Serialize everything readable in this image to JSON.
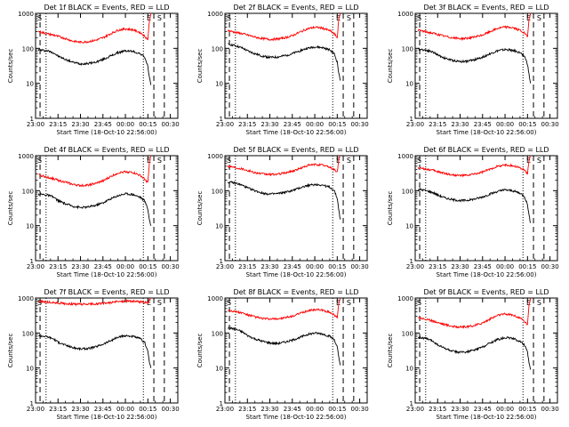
{
  "colors": {
    "background": "#ffffff",
    "events": "#000000",
    "lld": "#ff0000",
    "axis": "#000000"
  },
  "xlabel": "Start Time (18-Oct-10 22:56:00)",
  "ylabel": "Counts/sec",
  "x_tick_labels": [
    "23:00",
    "23:15",
    "23:30",
    "23:45",
    "00:00",
    "00:15",
    "00:30"
  ],
  "y_tick_labels": [
    "1",
    "10",
    "100",
    "1000"
  ],
  "marker_labels": {
    "start": "S",
    "end_e": "E",
    "end_s": "S"
  },
  "chart_data": [
    {
      "type": "line",
      "title": "Det 1f BLACK = Events, RED = LLD",
      "x_minutes_since_2300": [
        2,
        5,
        8,
        12,
        15,
        20,
        25,
        30,
        35,
        40,
        45,
        50,
        55,
        60,
        65,
        70,
        73,
        75,
        76,
        77
      ],
      "series": [
        {
          "name": "Events",
          "values": [
            90,
            88,
            85,
            75,
            60,
            48,
            40,
            36,
            37,
            40,
            48,
            60,
            75,
            85,
            82,
            70,
            55,
            30,
            15,
            9
          ]
        },
        {
          "name": "LLD",
          "values": [
            300,
            280,
            260,
            240,
            220,
            190,
            160,
            150,
            155,
            170,
            200,
            260,
            330,
            360,
            340,
            280,
            220,
            180,
            600,
            1000
          ]
        }
      ],
      "yscale": "log",
      "ylim": [
        1,
        1000
      ],
      "xlim": [
        0,
        95
      ]
    },
    {
      "type": "line",
      "title": "Det 2f BLACK = Events, RED = LLD",
      "x_minutes_since_2300": [
        2,
        5,
        8,
        12,
        15,
        20,
        25,
        30,
        35,
        40,
        45,
        50,
        55,
        60,
        65,
        70,
        73,
        75,
        76,
        77
      ],
      "series": [
        {
          "name": "Events",
          "values": [
            130,
            125,
            115,
            100,
            85,
            70,
            60,
            55,
            56,
            62,
            70,
            85,
            100,
            110,
            105,
            90,
            70,
            40,
            20,
            12
          ]
        },
        {
          "name": "LLD",
          "values": [
            320,
            300,
            280,
            260,
            240,
            210,
            190,
            180,
            185,
            200,
            230,
            290,
            360,
            400,
            380,
            320,
            260,
            200,
            650,
            1000
          ]
        }
      ],
      "yscale": "log",
      "ylim": [
        1,
        1000
      ],
      "xlim": [
        0,
        95
      ]
    },
    {
      "type": "line",
      "title": "Det 3f BLACK = Events, RED = LLD",
      "x_minutes_since_2300": [
        2,
        5,
        8,
        12,
        15,
        20,
        25,
        30,
        35,
        40,
        45,
        50,
        55,
        60,
        65,
        70,
        73,
        75,
        76,
        77
      ],
      "series": [
        {
          "name": "Events",
          "values": [
            95,
            92,
            88,
            78,
            65,
            52,
            45,
            42,
            43,
            48,
            56,
            70,
            85,
            92,
            88,
            75,
            60,
            35,
            18,
            10
          ]
        },
        {
          "name": "LLD",
          "values": [
            330,
            310,
            290,
            270,
            250,
            220,
            200,
            190,
            195,
            210,
            240,
            300,
            370,
            410,
            390,
            330,
            270,
            210,
            700,
            1000
          ]
        }
      ],
      "yscale": "log",
      "ylim": [
        1,
        1000
      ],
      "xlim": [
        0,
        95
      ]
    },
    {
      "type": "line",
      "title": "Det 4f BLACK = Events, RED = LLD",
      "x_minutes_since_2300": [
        2,
        5,
        8,
        12,
        15,
        20,
        25,
        30,
        35,
        40,
        45,
        50,
        55,
        60,
        65,
        70,
        73,
        75,
        76,
        77
      ],
      "series": [
        {
          "name": "Events",
          "values": [
            80,
            78,
            75,
            65,
            52,
            42,
            36,
            33,
            34,
            38,
            45,
            58,
            72,
            82,
            78,
            65,
            50,
            30,
            15,
            10
          ]
        },
        {
          "name": "LLD",
          "values": [
            280,
            260,
            240,
            220,
            200,
            175,
            150,
            140,
            145,
            160,
            190,
            250,
            320,
            350,
            330,
            270,
            210,
            170,
            600,
            1000
          ]
        }
      ],
      "yscale": "log",
      "ylim": [
        1,
        1000
      ],
      "xlim": [
        0,
        95
      ]
    },
    {
      "type": "line",
      "title": "Det 5f BLACK = Events, RED = LLD",
      "x_minutes_since_2300": [
        2,
        5,
        8,
        12,
        15,
        20,
        25,
        30,
        35,
        40,
        45,
        50,
        55,
        60,
        65,
        70,
        73,
        75,
        76,
        77
      ],
      "series": [
        {
          "name": "Events",
          "values": [
            175,
            170,
            160,
            140,
            120,
            100,
            85,
            80,
            82,
            90,
            100,
            120,
            140,
            150,
            145,
            125,
            100,
            60,
            30,
            15
          ]
        },
        {
          "name": "LLD",
          "values": [
            500,
            480,
            450,
            420,
            380,
            330,
            300,
            290,
            295,
            320,
            360,
            430,
            520,
            560,
            540,
            470,
            400,
            330,
            800,
            1000
          ]
        }
      ],
      "yscale": "log",
      "ylim": [
        1,
        1000
      ],
      "xlim": [
        0,
        95
      ]
    },
    {
      "type": "line",
      "title": "Det 6f BLACK = Events, RED = LLD",
      "x_minutes_since_2300": [
        2,
        5,
        8,
        12,
        15,
        20,
        25,
        30,
        35,
        40,
        45,
        50,
        55,
        60,
        65,
        70,
        73,
        75,
        76,
        77
      ],
      "series": [
        {
          "name": "Events",
          "values": [
            110,
            105,
            98,
            88,
            75,
            62,
            55,
            52,
            53,
            58,
            66,
            80,
            95,
            105,
            100,
            85,
            68,
            40,
            20,
            12
          ]
        },
        {
          "name": "LLD",
          "values": [
            450,
            430,
            410,
            380,
            350,
            310,
            280,
            270,
            275,
            300,
            340,
            410,
            500,
            540,
            520,
            450,
            380,
            310,
            750,
            1000
          ]
        }
      ],
      "yscale": "log",
      "ylim": [
        1,
        1000
      ],
      "xlim": [
        0,
        95
      ]
    },
    {
      "type": "line",
      "title": "Det 7f BLACK = Events, RED = LLD",
      "x_minutes_since_2300": [
        2,
        5,
        8,
        12,
        15,
        20,
        25,
        30,
        35,
        40,
        45,
        50,
        55,
        60,
        65,
        70,
        73,
        75,
        76,
        77
      ],
      "series": [
        {
          "name": "Events",
          "values": [
            85,
            82,
            78,
            68,
            55,
            45,
            38,
            35,
            36,
            40,
            48,
            60,
            75,
            84,
            80,
            68,
            52,
            30,
            15,
            10
          ]
        },
        {
          "name": "LLD",
          "values": [
            800,
            780,
            760,
            740,
            720,
            690,
            670,
            660,
            665,
            680,
            700,
            740,
            790,
            820,
            810,
            780,
            750,
            720,
            900,
            1000
          ]
        }
      ],
      "yscale": "log",
      "ylim": [
        1,
        1000
      ],
      "xlim": [
        0,
        95
      ]
    },
    {
      "type": "line",
      "title": "Det 8f BLACK = Events, RED = LLD",
      "x_minutes_since_2300": [
        2,
        5,
        8,
        12,
        15,
        20,
        25,
        30,
        35,
        40,
        45,
        50,
        55,
        60,
        65,
        70,
        73,
        75,
        76,
        77
      ],
      "series": [
        {
          "name": "Events",
          "values": [
            140,
            135,
            125,
            105,
            85,
            68,
            58,
            52,
            50,
            55,
            62,
            75,
            90,
            100,
            95,
            80,
            65,
            40,
            20,
            12
          ]
        },
        {
          "name": "LLD",
          "values": [
            450,
            430,
            400,
            370,
            330,
            290,
            260,
            250,
            255,
            270,
            300,
            360,
            430,
            470,
            450,
            390,
            330,
            270,
            700,
            1000
          ]
        }
      ],
      "yscale": "log",
      "ylim": [
        1,
        1000
      ],
      "xlim": [
        0,
        95
      ]
    },
    {
      "type": "line",
      "title": "Det 9f BLACK = Events, RED = LLD",
      "x_minutes_since_2300": [
        2,
        5,
        8,
        12,
        15,
        20,
        25,
        30,
        35,
        40,
        45,
        50,
        55,
        60,
        65,
        70,
        73,
        75,
        76,
        77
      ],
      "series": [
        {
          "name": "Events",
          "values": [
            75,
            72,
            68,
            58,
            46,
            36,
            30,
            28,
            29,
            33,
            40,
            52,
            65,
            74,
            70,
            58,
            45,
            28,
            14,
            9
          ]
        },
        {
          "name": "LLD",
          "values": [
            280,
            260,
            240,
            220,
            200,
            175,
            155,
            148,
            150,
            165,
            195,
            250,
            320,
            350,
            330,
            270,
            215,
            175,
            600,
            1000
          ]
        }
      ],
      "yscale": "log",
      "ylim": [
        1,
        1000
      ],
      "xlim": [
        0,
        95
      ]
    }
  ],
  "markers_minutes_since_2300": {
    "start_dashed": 3,
    "start_dotted": 7,
    "end_dotted": 72,
    "end_dashed_e": 79,
    "end_dashed_s": 86
  }
}
